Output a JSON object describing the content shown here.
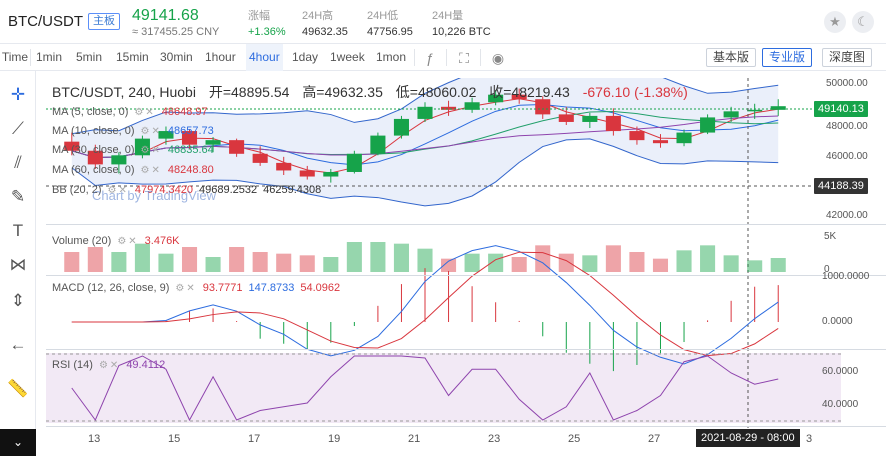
{
  "ticker": {
    "pair": "BTC/USDT",
    "badge": "主板",
    "price": "49141.68",
    "price_cny": "≈ 317455.25 CNY",
    "stats": [
      {
        "label": "涨幅",
        "value": "+1.36%"
      },
      {
        "label": "24H高",
        "value": "49632.35"
      },
      {
        "label": "24H低",
        "value": "47756.95"
      },
      {
        "label": "24H量",
        "value": "10,226 BTC"
      }
    ],
    "colors": {
      "up": "#16a34a",
      "down": "#d9363e",
      "accent": "#2d6cdf"
    }
  },
  "toolbar": {
    "intervals": [
      "Time",
      "1min",
      "5min",
      "15min",
      "30min",
      "1hour",
      "4hour",
      "1day",
      "1week",
      "1mon"
    ],
    "active_interval": "4hour",
    "icons": [
      "indicator-icon",
      "fullscreen-icon",
      "snapshot-icon"
    ],
    "views": [
      "基本版",
      "专业版",
      "深度图"
    ],
    "active_view": "专业版"
  },
  "tools": [
    "crosshair-icon",
    "trend-line-icon",
    "fib-icon",
    "brush-icon",
    "text-icon",
    "pattern-icon",
    "measure-icon",
    "back-arrow-icon",
    "ruler-icon"
  ],
  "chart": {
    "symbol_line": "BTC/USDT, 240, Huobi",
    "open": "开=48895.54",
    "high": "高=49632.35",
    "low": "低=48060.02",
    "close": "收=48219.43",
    "change": "-676.10 (-1.38%)",
    "watermark": "Chart by TradingView",
    "ma_legends": [
      {
        "name": "MA (5, close, 0)",
        "value": "48648.97",
        "color": "#d9363e"
      },
      {
        "name": "MA (10, close, 0)",
        "value": "48657.73",
        "color": "#2d6cdf"
      },
      {
        "name": "MA (30, close, 0)",
        "value": "46835.64",
        "color": "#22a06b"
      },
      {
        "name": "MA (60, close, 0)",
        "value": "48248.80",
        "color": "#8e44ad"
      },
      {
        "name": "BB (20, 2)",
        "value": "47974.3420",
        "value2": "49689.2532",
        "value3": "46259.4308",
        "color": "#3366cc"
      }
    ],
    "current_price_tag": "49140.13",
    "crosshair_price_tag": "44188.39",
    "price_ticks": [
      "50000.00",
      "48000.00",
      "46000.00",
      "44000.00",
      "42000.00"
    ],
    "volume_legend": {
      "name": "Volume (20)",
      "value": "3.476K"
    },
    "volume_ticks": [
      "5K",
      "0"
    ],
    "macd_legend": {
      "name": "MACD (12, 26, close, 9)",
      "v1": "93.7771",
      "v2": "147.8733",
      "v3": "54.0962"
    },
    "macd_ticks": [
      "1000.0000",
      "0.0000"
    ],
    "rsi_legend": {
      "name": "RSI (14)",
      "value": "49.4112"
    },
    "rsi_ticks": [
      "60.0000",
      "40.0000"
    ],
    "x_labels": [
      "13",
      "15",
      "17",
      "19",
      "21",
      "23",
      "25",
      "27"
    ],
    "crosshair_date": "2021-08-29 - 08:00",
    "x_partial": "3"
  },
  "chart_data": {
    "type": "candlestick",
    "title": "BTC/USDT, 240, Huobi",
    "ylim": [
      41500,
      51000
    ],
    "x_range_dates": [
      "2021-08-12",
      "2021-08-30"
    ],
    "ohlc_approx": [
      [
        46800,
        47400,
        45900,
        46200
      ],
      [
        46200,
        46600,
        45000,
        45300
      ],
      [
        45300,
        46100,
        44700,
        45900
      ],
      [
        45900,
        47200,
        45700,
        47000
      ],
      [
        47000,
        47800,
        46600,
        47500
      ],
      [
        47500,
        47600,
        46300,
        46600
      ],
      [
        46600,
        47100,
        46100,
        46900
      ],
      [
        46900,
        47000,
        45800,
        46000
      ],
      [
        46000,
        46500,
        45200,
        45400
      ],
      [
        45400,
        45800,
        44600,
        44900
      ],
      [
        44900,
        45200,
        44300,
        44500
      ],
      [
        44500,
        45000,
        44100,
        44800
      ],
      [
        44800,
        46200,
        44700,
        46000
      ],
      [
        46000,
        47400,
        45900,
        47200
      ],
      [
        47200,
        48500,
        47000,
        48300
      ],
      [
        48300,
        49400,
        48100,
        49100
      ],
      [
        49100,
        49500,
        48500,
        48900
      ],
      [
        48900,
        49700,
        48700,
        49400
      ],
      [
        49400,
        50200,
        49200,
        49900
      ],
      [
        49900,
        50300,
        49300,
        49600
      ],
      [
        49600,
        49800,
        48300,
        48600
      ],
      [
        48600,
        49100,
        47900,
        48100
      ],
      [
        48100,
        48700,
        47700,
        48500
      ],
      [
        48500,
        49000,
        47200,
        47500
      ],
      [
        47500,
        47800,
        46600,
        46900
      ],
      [
        46900,
        47300,
        46400,
        46700
      ],
      [
        46700,
        47600,
        46500,
        47400
      ],
      [
        47400,
        48600,
        47300,
        48400
      ],
      [
        48400,
        49100,
        48100,
        48800
      ],
      [
        48800,
        49300,
        48300,
        48900
      ],
      [
        48900,
        49600,
        48500,
        49140
      ]
    ]
  }
}
